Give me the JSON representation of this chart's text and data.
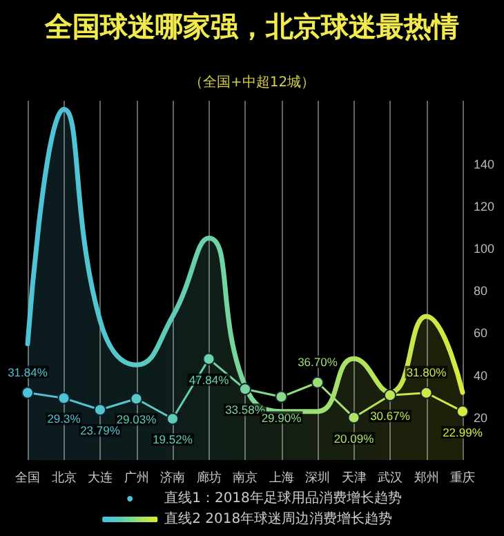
{
  "chart_data": {
    "type": "line",
    "title": "全国球迷哪家强，北京球迷最热情",
    "subtitle": "（全国+中超12城）",
    "categories": [
      "全国",
      "北京",
      "大连",
      "广州",
      "济南",
      "廊坊",
      "南京",
      "上海",
      "深圳",
      "天津",
      "武汉",
      "郑州",
      "重庆"
    ],
    "series": [
      {
        "name": "直线1：2018年足球用品消费增长趋势",
        "type": "line",
        "marker": "circle",
        "colors": [
          "#4fc3d6",
          "#4fc3d6",
          "#52c6cf",
          "#58c9c4",
          "#60ccb8",
          "#6cd2a8",
          "#7ad698",
          "#8ada88",
          "#9cde76",
          "#aee264",
          "#bee552",
          "#cce746",
          "#d8ea3c"
        ],
        "values": [
          31.84,
          29.3,
          23.79,
          29.03,
          19.52,
          47.84,
          33.58,
          29.9,
          36.7,
          20.09,
          30.67,
          31.8,
          22.99
        ],
        "value_labels": [
          "31.84%",
          "29.3%",
          "23.79%",
          "29.03%",
          "19.52%",
          "47.84%",
          "33.58%",
          "29.90%",
          "36.70%",
          "20.09%",
          "30.67%",
          "31.80%",
          "22.99%"
        ]
      },
      {
        "name": "直线2 2018年球迷周边消费增长趋势",
        "type": "area",
        "marker": "none",
        "colors": [
          "#4fc3d6",
          "#4fc3d6",
          "#52c6cf",
          "#58c9c4",
          "#60ccb8",
          "#6cd2a8",
          "#7ad698",
          "#8ada88",
          "#9cde76",
          "#aee264",
          "#bee552",
          "#cce746",
          "#d8ea3c"
        ],
        "values": [
          55,
          166,
          66,
          45,
          68,
          105,
          35,
          23,
          23,
          48,
          32,
          68,
          32
        ]
      }
    ],
    "ylim": [
      0,
      170
    ],
    "yticks": [
      20,
      40,
      60,
      80,
      100,
      120,
      140
    ],
    "grid": "x",
    "legend": "bottom"
  }
}
